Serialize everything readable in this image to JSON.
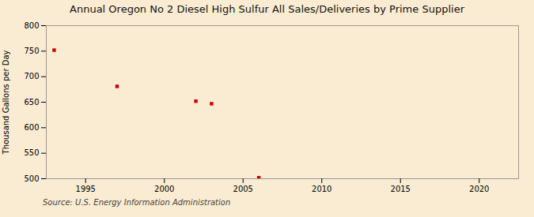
{
  "chart_data": {
    "type": "scatter",
    "title": "Annual Oregon No 2 Diesel High Sulfur All Sales/Deliveries by Prime Supplier",
    "ylabel": "Thousand Gallons per Day",
    "source": "Source: U.S. Energy Information Administration",
    "x": [
      1993,
      1997,
      2002,
      2003,
      2006
    ],
    "values": [
      752,
      681,
      652,
      647,
      502
    ],
    "color": "#cc0000",
    "marker": "square",
    "xlim": [
      1992.5,
      2022.5
    ],
    "ylim": [
      500,
      800
    ],
    "xticks": [
      1995,
      2000,
      2005,
      2010,
      2015,
      2020
    ],
    "yticks": [
      500,
      550,
      600,
      650,
      700,
      750,
      800
    ],
    "grid": true
  }
}
